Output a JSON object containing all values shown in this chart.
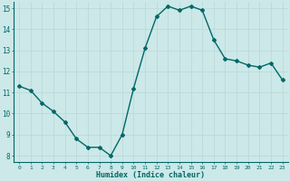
{
  "x": [
    0,
    1,
    2,
    3,
    4,
    5,
    6,
    7,
    8,
    9,
    10,
    11,
    12,
    13,
    14,
    15,
    16,
    17,
    18,
    19,
    20,
    21,
    22,
    23
  ],
  "y": [
    11.3,
    11.1,
    10.5,
    10.1,
    9.6,
    8.8,
    8.4,
    8.4,
    8.0,
    9.0,
    11.2,
    13.1,
    14.6,
    15.1,
    14.9,
    15.1,
    14.9,
    13.5,
    12.6,
    12.5,
    12.3,
    12.2,
    12.4,
    11.6
  ],
  "xlabel": "Humidex (Indice chaleur)",
  "ylim": [
    7.7,
    15.3
  ],
  "xlim": [
    -0.5,
    23.5
  ],
  "yticks": [
    8,
    9,
    10,
    11,
    12,
    13,
    14,
    15
  ],
  "xticks": [
    0,
    1,
    2,
    3,
    4,
    5,
    6,
    7,
    8,
    9,
    10,
    11,
    12,
    13,
    14,
    15,
    16,
    17,
    18,
    19,
    20,
    21,
    22,
    23
  ],
  "bg_color": "#cce8e8",
  "grid_color": "#b8d8d8",
  "line_color": "#006868",
  "marker": "D",
  "marker_size": 2.0,
  "line_width": 1.0
}
